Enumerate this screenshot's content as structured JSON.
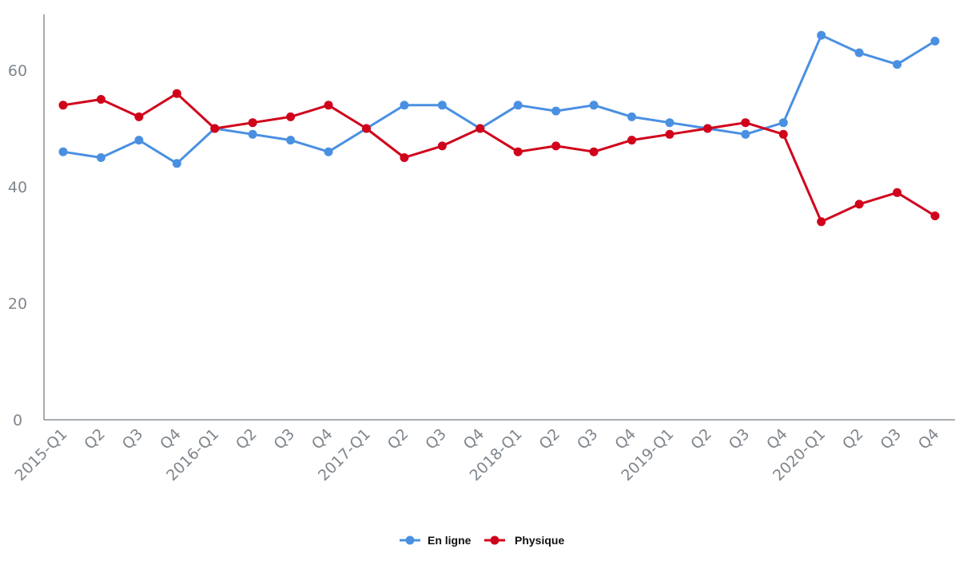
{
  "chart_data": {
    "type": "line",
    "title": "",
    "xlabel": "",
    "ylabel": "",
    "ylim": [
      0,
      67
    ],
    "yticks": [
      0,
      20,
      40,
      60
    ],
    "grid": false,
    "legend_position": "bottom-center",
    "categories": [
      "2015-Q1",
      "Q2",
      "Q3",
      "Q4",
      "2016-Q1",
      "Q2",
      "Q3",
      "Q4",
      "2017-Q1",
      "Q2",
      "Q3",
      "Q4",
      "2018-Q1",
      "Q2",
      "Q3",
      "Q4",
      "2019-Q1",
      "Q2",
      "Q3",
      "Q4",
      "2020-Q1",
      "Q2",
      "Q3",
      "Q4"
    ],
    "series": [
      {
        "name": "En ligne",
        "color": "#4a90e2",
        "values": [
          46,
          45,
          48,
          44,
          50,
          49,
          48,
          46,
          50,
          54,
          54,
          50,
          54,
          53,
          54,
          52,
          51,
          50,
          49,
          51,
          66,
          63,
          61,
          65
        ]
      },
      {
        "name": "Physique",
        "color": "#d0021b",
        "values": [
          54,
          55,
          52,
          56,
          50,
          51,
          52,
          54,
          50,
          45,
          47,
          50,
          46,
          47,
          46,
          48,
          49,
          50,
          51,
          49,
          34,
          37,
          39,
          35
        ]
      }
    ]
  }
}
